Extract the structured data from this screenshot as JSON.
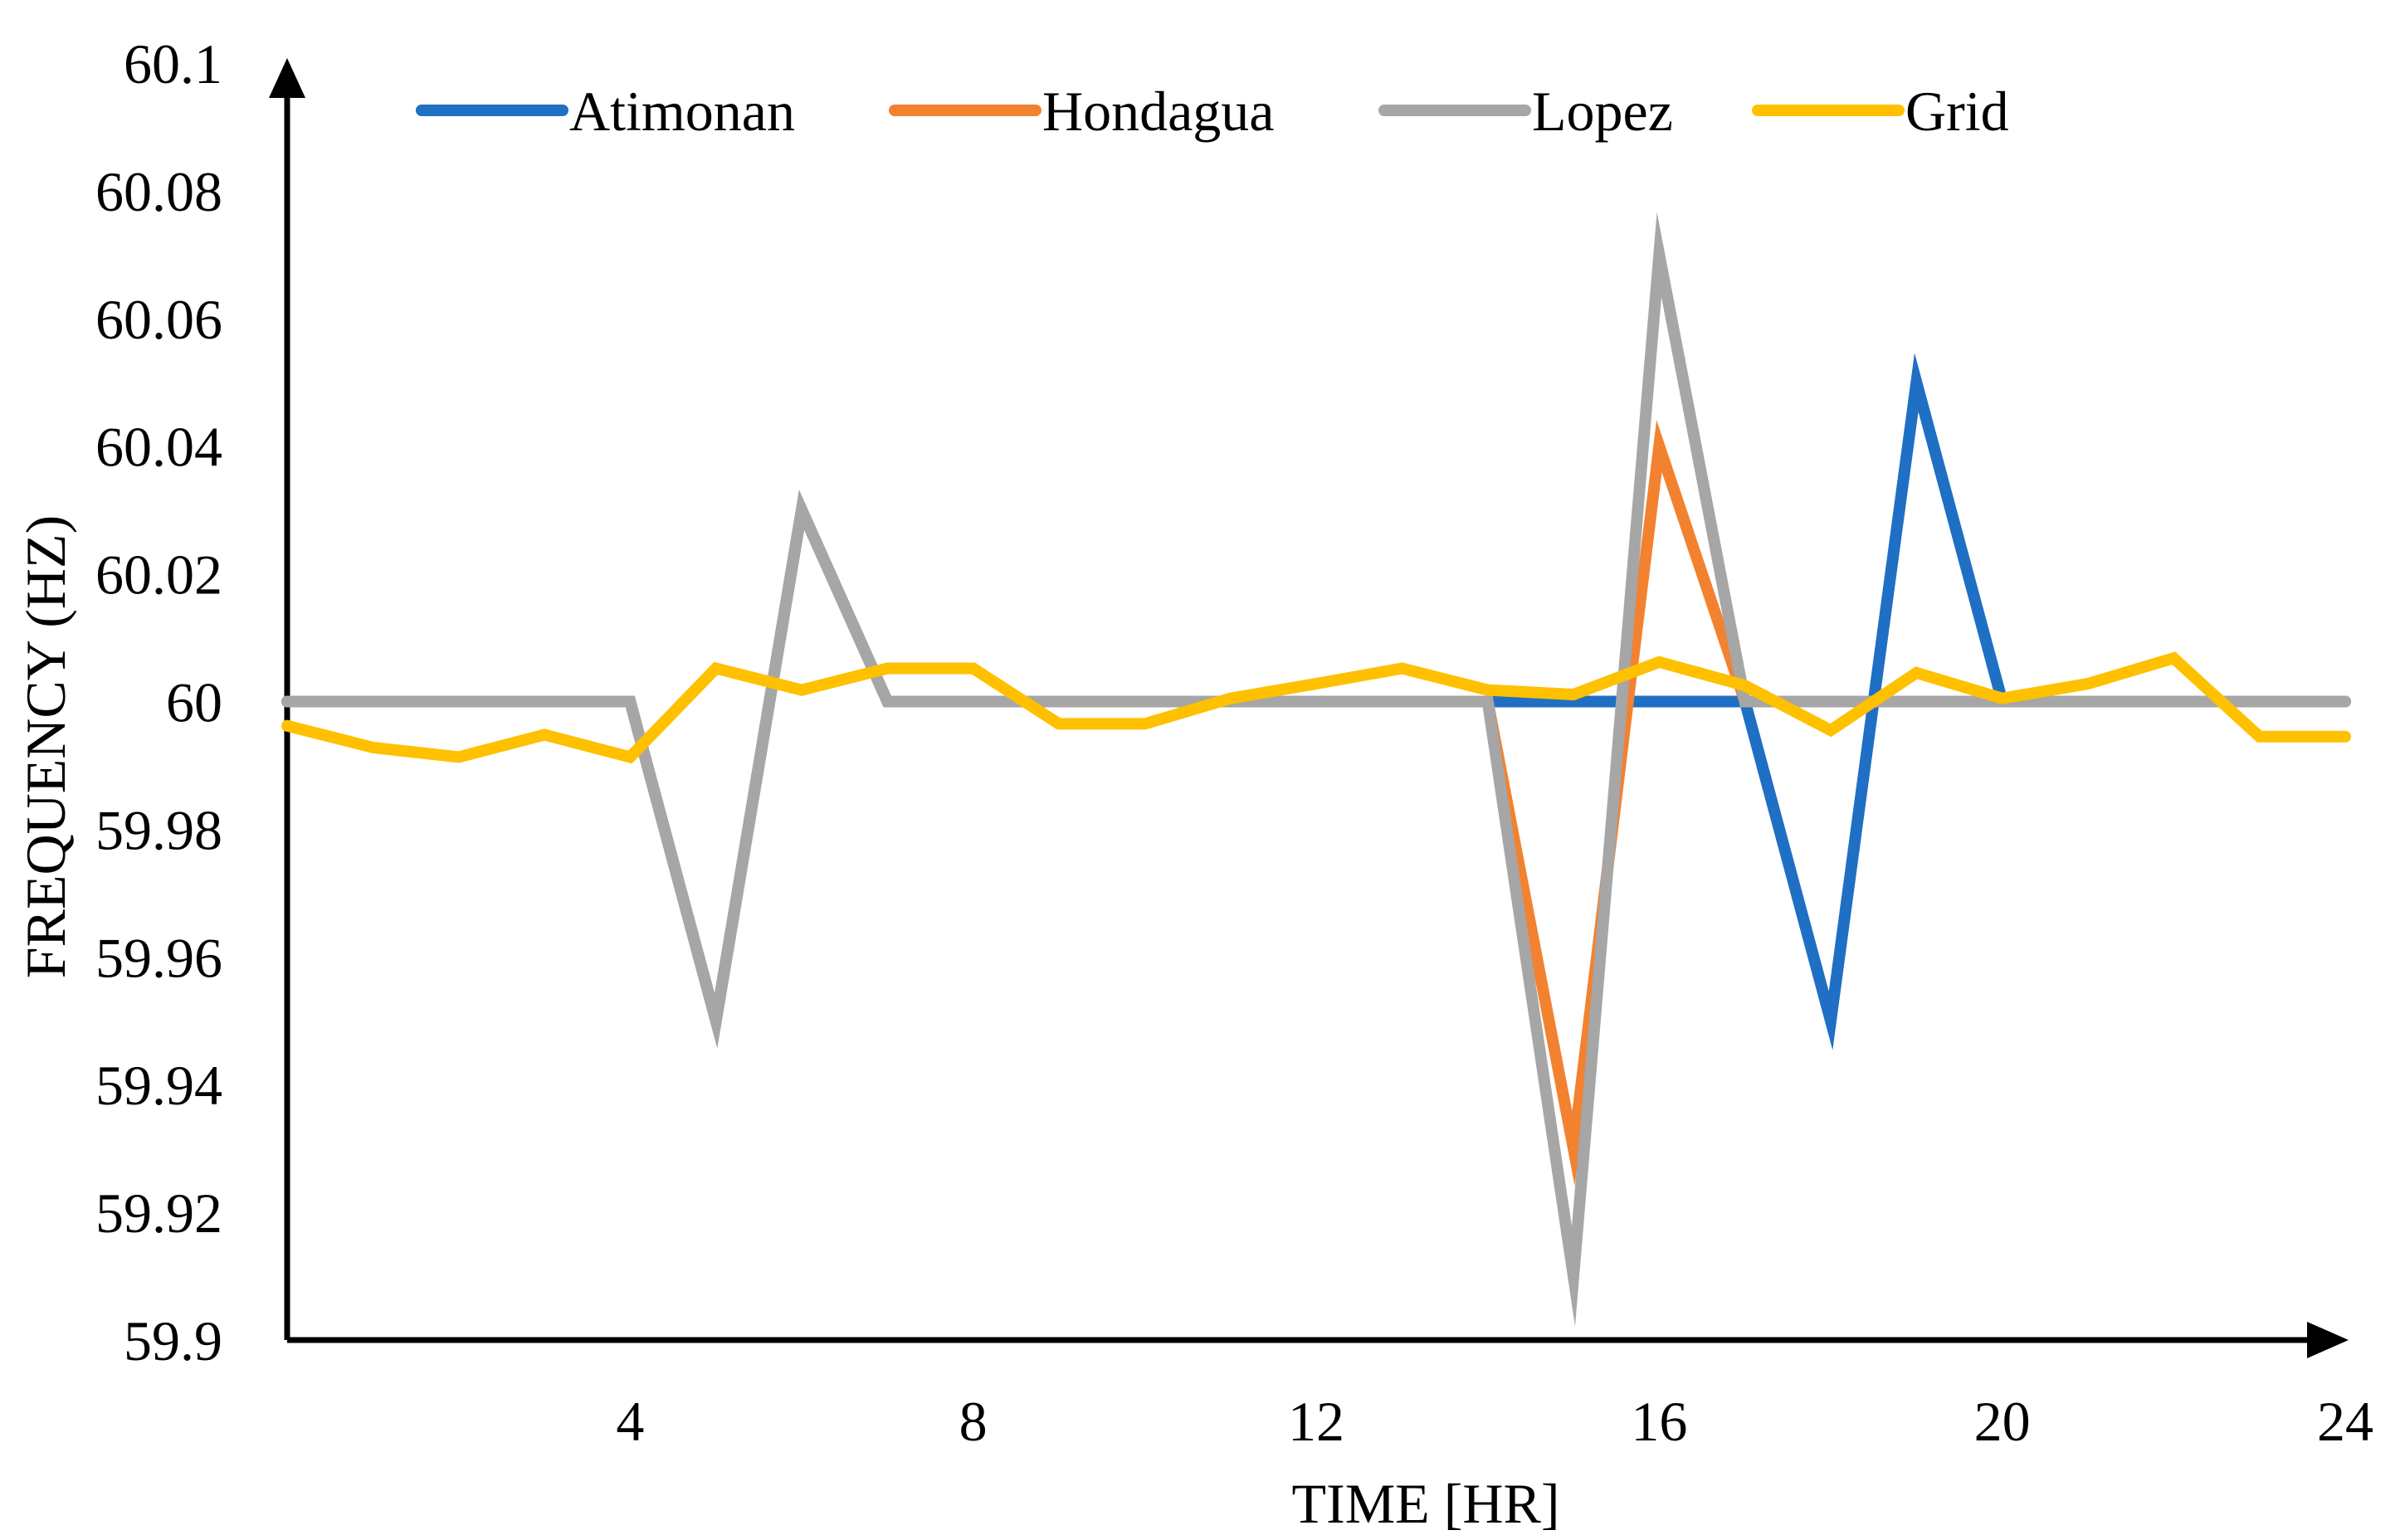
{
  "chart_data": {
    "type": "line",
    "title": "",
    "xlabel": "TIME [HR]",
    "ylabel": "FREQUENCY (HZ)",
    "xlim": [
      0,
      24
    ],
    "ylim": [
      59.9,
      60.1
    ],
    "x_ticks": [
      4,
      8,
      12,
      16,
      20,
      24
    ],
    "x_tick_labels": [
      "4",
      "8",
      "12",
      "16",
      "20",
      "24"
    ],
    "y_ticks": [
      59.9,
      59.92,
      59.94,
      59.96,
      59.98,
      60,
      60.02,
      60.04,
      60.06,
      60.08,
      60.1
    ],
    "y_tick_labels": [
      "59.9",
      "59.92",
      "59.94",
      "59.96",
      "59.98",
      "60",
      "60.02",
      "60.04",
      "60.06",
      "60.08",
      "60.1"
    ],
    "grid": false,
    "legend_position": "top",
    "x": [
      0,
      1,
      2,
      3,
      4,
      5,
      6,
      7,
      8,
      9,
      10,
      11,
      12,
      13,
      14,
      15,
      16,
      17,
      18,
      19,
      20,
      21,
      22,
      23,
      24
    ],
    "series": [
      {
        "name": "Atimonan",
        "color": "#1F6FC4",
        "values": [
          60,
          60,
          60,
          60,
          60,
          59.95,
          60.03,
          60,
          60,
          60,
          60,
          60,
          60,
          60,
          60,
          60,
          60,
          60,
          59.95,
          60.05,
          60,
          60,
          60,
          60,
          60
        ]
      },
      {
        "name": "Hondagua",
        "color": "#F28230",
        "values": [
          60,
          60,
          60,
          60,
          60,
          59.95,
          60.03,
          60,
          60,
          60,
          60,
          60,
          60,
          60,
          60,
          59.93,
          60.04,
          60,
          60,
          60,
          60,
          60,
          60,
          60,
          60
        ]
      },
      {
        "name": "Lopez",
        "color": "#A6A6A6",
        "values": [
          60,
          60,
          60,
          60,
          60,
          59.95,
          60.03,
          60,
          60,
          60,
          60,
          60,
          60,
          60,
          60,
          59.91,
          60.07,
          60,
          60,
          60,
          60,
          60,
          60,
          60,
          60
        ]
      },
      {
        "name": "Grid",
        "color": "#FFC000",
        "values": [
          59.9962,
          59.9928,
          59.9913,
          59.9948,
          59.9913,
          60.0052,
          60.0018,
          60.0052,
          60.0052,
          59.9965,
          59.9965,
          60.0005,
          60.0028,
          60.0052,
          60.0018,
          60.0011,
          60.0062,
          60.0025,
          59.9955,
          60.0045,
          60.0005,
          60.0028,
          60.0068,
          59.9945,
          59.9945
        ]
      }
    ]
  }
}
